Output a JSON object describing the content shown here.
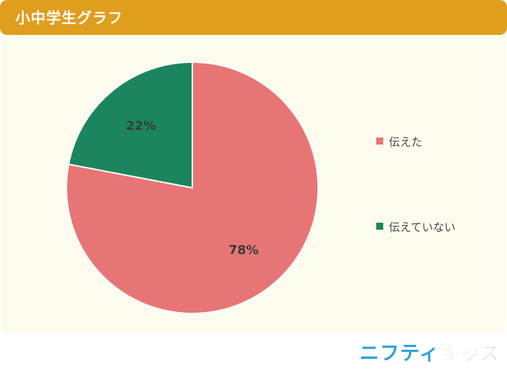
{
  "header": {
    "title": "小中学生グラフ"
  },
  "colors": {
    "header": "#e09e1f",
    "panel": "#fdfbee",
    "slice1": "#e87575",
    "slice2": "#1b865e"
  },
  "chart_data": {
    "type": "pie",
    "slices": [
      {
        "label": "伝えた",
        "value": 78,
        "display": "78%",
        "color": "#e87575"
      },
      {
        "label": "伝えていない",
        "value": 22,
        "display": "22%",
        "color": "#1b865e"
      }
    ],
    "legend_position": "right"
  },
  "logo": {
    "text_main": "ニフティ",
    "text_kids_a": "キ",
    "text_kids_b": "ッズ"
  }
}
